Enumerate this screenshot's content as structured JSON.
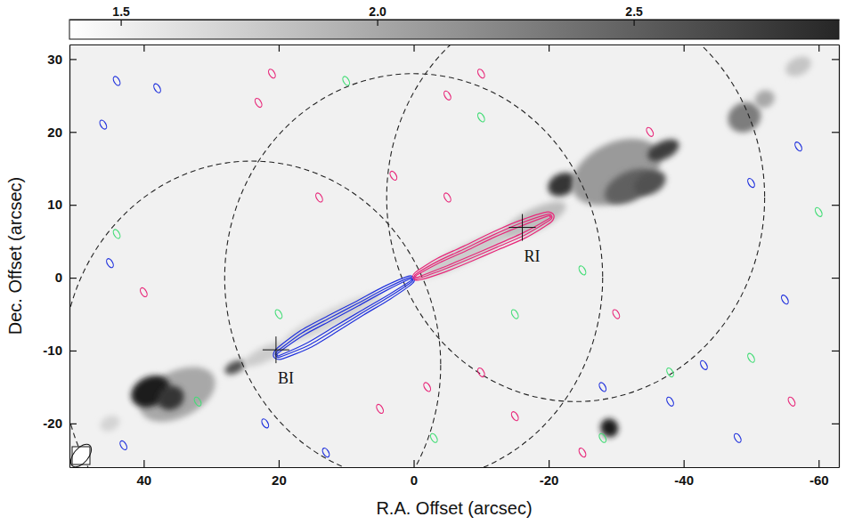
{
  "chart_data": {
    "type": "image",
    "xlabel": "R.A. Offset (arcsec)",
    "ylabel": "Dec. Offset (arcsec)",
    "xlim": [
      51,
      -63
    ],
    "ylim": [
      -26,
      32
    ],
    "xticks": [
      40,
      20,
      0,
      -20,
      -40,
      -60
    ],
    "yticks": [
      -20,
      -10,
      0,
      10,
      20,
      30
    ],
    "colorbar": {
      "range": [
        1.4,
        2.9
      ],
      "ticks": [
        1.5,
        {
          "value": 2,
          "label": "2.0"
        },
        2.5
      ]
    },
    "background": 1.5,
    "emission": {
      "x": [
        35,
        39,
        36,
        26.5,
        45,
        22,
        12,
        -8,
        -18,
        -22,
        -30,
        -32,
        -37,
        -35,
        -49,
        -52,
        -57,
        -29
      ],
      "y": [
        -16,
        -15.6,
        -16.5,
        -12.3,
        -20,
        -10.5,
        -5.5,
        3.4,
        8,
        12.8,
        14.5,
        12.5,
        17.5,
        13,
        22,
        24.5,
        29,
        -20.6
      ],
      "major": [
        6,
        3,
        2,
        1.6,
        1.5,
        3.5,
        8,
        8,
        5,
        2.2,
        7,
        4,
        2.5,
        2.5,
        2.5,
        1.5,
        2,
        1.3
      ],
      "minor": [
        3.2,
        2,
        1.6,
        0.8,
        1,
        1,
        1.2,
        1.2,
        1.5,
        1.5,
        4,
        2,
        1.2,
        1.5,
        2,
        1.2,
        1.2,
        1.3
      ],
      "level": [
        2.0,
        2.95,
        2.8,
        2.6,
        1.7,
        1.75,
        1.7,
        1.75,
        1.85,
        2.8,
        2.1,
        2.5,
        2.75,
        2.6,
        2.3,
        2.0,
        1.8,
        2.95
      ]
    },
    "lobes": [
      {
        "color": "#2233dd",
        "x": [
          0.5,
          4,
          8,
          12,
          16,
          20
        ],
        "y": [
          -0.3,
          -2.1,
          -4.2,
          -6.3,
          -8.4,
          -10.5
        ],
        "half_widths": [
          [
            0.6,
            1.0,
            1.1,
            1.3,
            1.4,
            0.8
          ],
          [
            0.35,
            0.65,
            0.75,
            0.9,
            1.0,
            0.45
          ],
          [
            0.15,
            0.35,
            0.4,
            0.5,
            0.6,
            0.2
          ]
        ]
      },
      {
        "color": "#e8287a",
        "x": [
          -0.5,
          -4,
          -8,
          -12,
          -16,
          -20
        ],
        "y": [
          0.2,
          1.7,
          3.3,
          5,
          6.6,
          8.3
        ],
        "half_widths": [
          [
            0.6,
            1.1,
            1.2,
            1.3,
            1.3,
            0.8
          ],
          [
            0.35,
            0.7,
            0.8,
            0.9,
            0.9,
            0.45
          ],
          [
            0.15,
            0.4,
            0.45,
            0.55,
            0.5,
            0.2
          ]
        ]
      }
    ],
    "noise": [
      {
        "color": "#2233dd",
        "x": [
          44,
          38,
          46,
          45,
          43,
          22,
          -28,
          -38,
          -43,
          -50,
          -57,
          -48,
          -55,
          13
        ],
        "y": [
          27,
          26,
          21,
          2,
          -23,
          -20,
          -15,
          -17,
          -12,
          13,
          18,
          -22,
          -3,
          -24
        ]
      },
      {
        "color": "#e8287a",
        "x": [
          21,
          -10,
          -5,
          23,
          -35,
          3,
          -5,
          14,
          -2,
          -10,
          -15,
          5,
          -25,
          40,
          -30,
          -56
        ],
        "y": [
          28,
          28,
          25,
          24,
          20,
          14,
          11,
          11,
          -15,
          -13,
          -19,
          -18,
          -24,
          -2,
          -5,
          -17
        ]
      },
      {
        "color": "#44dd77",
        "x": [
          44,
          -10,
          -15,
          -3,
          20,
          -38,
          -25,
          32,
          -60,
          -28,
          -50,
          10
        ],
        "y": [
          6,
          22,
          -5,
          -22,
          -5,
          -13,
          1,
          -17,
          9,
          -22,
          -11,
          27
        ]
      }
    ],
    "fields": {
      "x": [
        24,
        0,
        -24
      ],
      "y": [
        -12,
        0,
        11
      ],
      "radius": [
        28,
        28,
        28
      ]
    },
    "markers": [
      {
        "label": "BI",
        "x": 20.4,
        "y": -9.9
      },
      {
        "label": "RI",
        "x": -16.1,
        "y": 6.9
      }
    ],
    "beam": {
      "major": 2,
      "minor": 1
    }
  }
}
